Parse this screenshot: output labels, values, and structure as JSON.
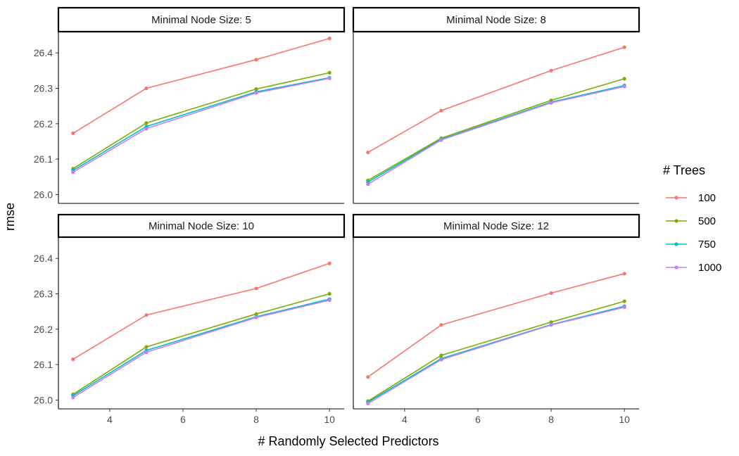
{
  "chart_data": {
    "type": "line",
    "facet_type": "wrap",
    "xlabel": "# Randomly Selected Predictors",
    "ylabel": "rmse",
    "x": [
      3,
      5,
      8,
      10
    ],
    "xticks": [
      4,
      6,
      8,
      10
    ],
    "xlim": [
      2.6,
      10.4
    ],
    "yticks": [
      26.0,
      26.1,
      26.2,
      26.3,
      26.4
    ],
    "ylim": [
      25.975,
      26.46
    ],
    "grid": false,
    "legend": {
      "title": "# Trees",
      "placement": "right",
      "entries": [
        {
          "name": "100",
          "color": "#F8766D"
        },
        {
          "name": "500",
          "color": "#7CAE00"
        },
        {
          "name": "750",
          "color": "#00BFC4"
        },
        {
          "name": "1000",
          "color": "#C77CFF"
        }
      ]
    },
    "panels": [
      {
        "title": "Minimal Node Size: 5",
        "series": [
          {
            "name": "100",
            "values": [
              26.173,
              26.3,
              26.381,
              26.441
            ]
          },
          {
            "name": "500",
            "values": [
              26.073,
              26.202,
              26.298,
              26.344
            ]
          },
          {
            "name": "750",
            "values": [
              26.068,
              26.192,
              26.29,
              26.33
            ]
          },
          {
            "name": "1000",
            "values": [
              26.063,
              26.186,
              26.287,
              26.328
            ]
          }
        ]
      },
      {
        "title": "Minimal Node Size: 8",
        "series": [
          {
            "name": "100",
            "values": [
              26.119,
              26.237,
              26.35,
              26.416
            ]
          },
          {
            "name": "500",
            "values": [
              26.04,
              26.159,
              26.266,
              26.327
            ]
          },
          {
            "name": "750",
            "values": [
              26.035,
              26.156,
              26.261,
              26.308
            ]
          },
          {
            "name": "1000",
            "values": [
              26.029,
              26.154,
              26.259,
              26.305
            ]
          }
        ]
      },
      {
        "title": "Minimal Node Size: 10",
        "series": [
          {
            "name": "100",
            "values": [
              26.115,
              26.24,
              26.315,
              26.386
            ]
          },
          {
            "name": "500",
            "values": [
              26.016,
              26.15,
              26.243,
              26.3
            ]
          },
          {
            "name": "750",
            "values": [
              26.012,
              26.14,
              26.235,
              26.285
            ]
          },
          {
            "name": "1000",
            "values": [
              26.007,
              26.135,
              26.233,
              26.282
            ]
          }
        ]
      },
      {
        "title": "Minimal Node Size: 12",
        "series": [
          {
            "name": "100",
            "values": [
              26.065,
              26.212,
              26.302,
              26.357
            ]
          },
          {
            "name": "500",
            "values": [
              25.997,
              26.126,
              26.22,
              26.279
            ]
          },
          {
            "name": "750",
            "values": [
              25.994,
              26.117,
              26.213,
              26.265
            ]
          },
          {
            "name": "1000",
            "values": [
              25.99,
              26.114,
              26.212,
              26.262
            ]
          }
        ]
      }
    ]
  }
}
